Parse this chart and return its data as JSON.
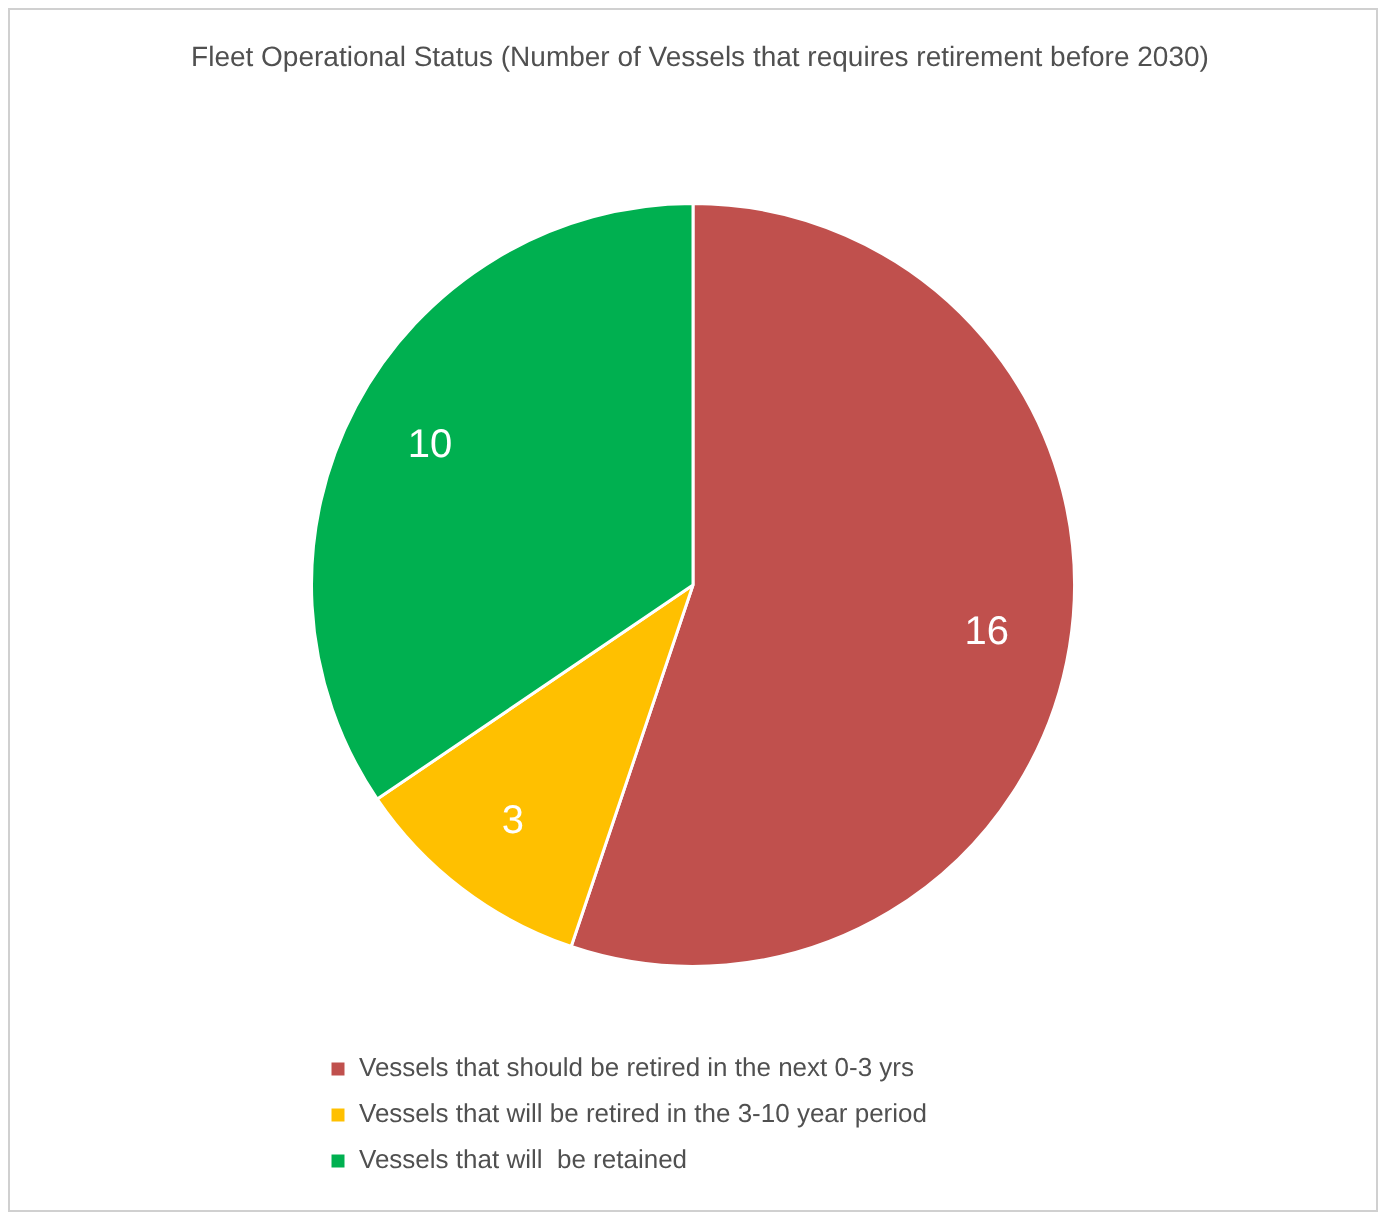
{
  "chart_data": {
    "type": "pie",
    "title": "Fleet Operational Status (Number of Vessels that requires retirement before 2030)",
    "categories": [
      "Vessels that should be retired in the next 0-3 yrs",
      "Vessels that will be retired in the 3-10 year period",
      "Vessels that will  be retained"
    ],
    "values": [
      16,
      3,
      10
    ],
    "colors": [
      "#c0504d",
      "#ffc000",
      "#00b050"
    ],
    "data_labels": true,
    "legend": "bottom"
  }
}
